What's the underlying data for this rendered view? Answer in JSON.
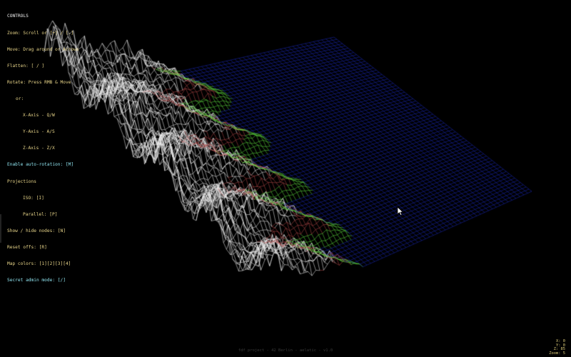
{
  "controls": {
    "title": "CONTROLS",
    "lines": [
      "Zoom: Scroll or [+] / [-]",
      "Move: Drag around or Arrows",
      "Flatten: [ / ]",
      "Rotate: Press RMB & Move",
      "or:",
      "X-Axis - Q/W",
      "Y-Axis - A/S",
      "Z-Axis - Z/X",
      "Enable auto-rotation: [M]",
      "Projections",
      "ISO: [I]",
      "Parallel: [P]",
      "Show / hide nodes: [N]",
      "Reset offs: [R]",
      "Map colors: [1][2][3][4]",
      "Secret admin mode: [/]"
    ]
  },
  "footer": "fdf project - 42 Berlin - aelatic - v1.0",
  "stats": {
    "line1": "X: 0",
    "line2": "Y: 0",
    "line3": "Z: 85",
    "line4": "Zoom: 5"
  },
  "colors": {
    "background": "#000000",
    "water": "#1a28b8",
    "land": "#5fe040",
    "rock": "#b84a4a",
    "snow": "#f0f0f0",
    "menu_text": "#e9d68a",
    "menu_highlight": "#8fe3ef"
  },
  "icons": {
    "cursor": "arrow-cursor-icon"
  }
}
